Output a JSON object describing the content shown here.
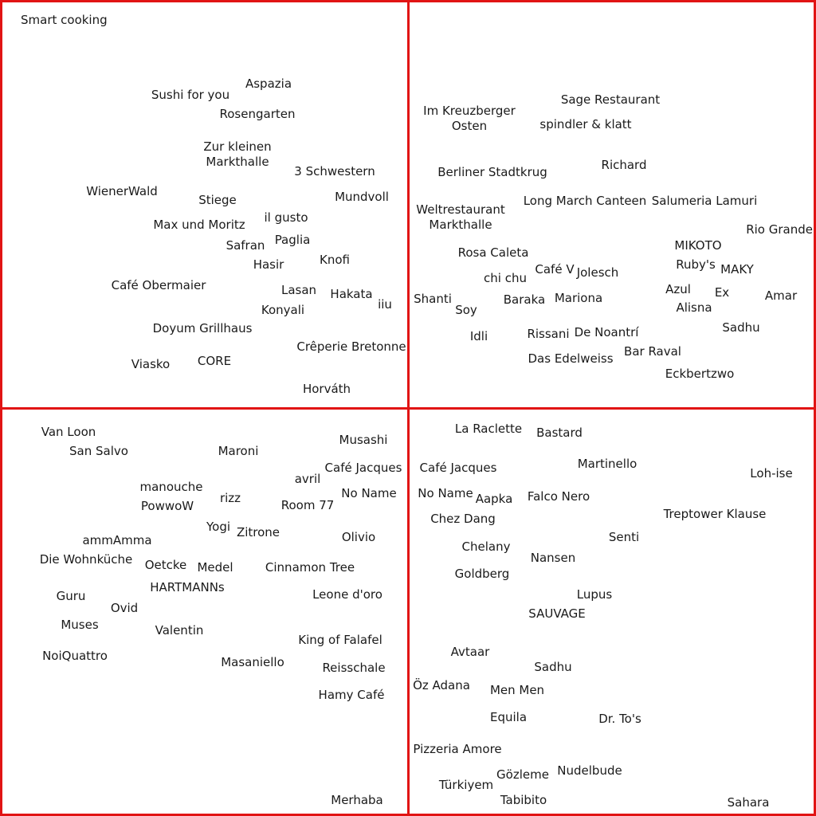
{
  "title": "Smart cooking",
  "quadrants": [
    {
      "name": "top-left",
      "labels": [
        "Aspazia",
        "Sushi for you",
        "Rosengarten",
        "Zur kleinen\nMarkthalle",
        "3 Schwestern",
        "WienerWald",
        "Stiege",
        "Mundvoll",
        "il gusto",
        "Max und Moritz",
        "Paglia",
        "Safran",
        "Knofi",
        "Hasir",
        "Café Obermaier",
        "Lasan",
        "Hakata",
        "iiu",
        "Konyali",
        "Doyum Grillhaus",
        "Crêperie Bretonne",
        "Viasko",
        "CORE",
        "Horváth"
      ]
    },
    {
      "name": "top-right",
      "labels": [
        "Sage Restaurant",
        "Im Kreuzberger\nOsten",
        "spindler & klatt",
        "Richard",
        "Berliner Stadtkrug",
        "Weltrestaurant\nMarkthalle",
        "Long March Canteen",
        "Salumeria Lamuri",
        "Rio Grande",
        "MIKOTO",
        "Rosa Caleta",
        "Ruby's",
        "MAKY",
        "Café V",
        "Jolesch",
        "chi chu",
        "Azul",
        "Ex",
        "Amar",
        "Shanti",
        "Baraka",
        "Mariona",
        "Alisna",
        "Soy",
        "Sadhu",
        "Idli",
        "Rissani",
        "De Noantrí",
        "Bar Raval",
        "Das Edelweiss",
        "Eckbertzwo"
      ]
    },
    {
      "name": "bottom-left",
      "labels": [
        "Van Loon",
        "San Salvo",
        "Maroni",
        "Musashi",
        "Café Jacques",
        "avril",
        "manouche",
        "No Name",
        "rizz",
        "PowwoW",
        "Room 77",
        "Yogi",
        "Zitrone",
        "ammAmma",
        "Olivio",
        "Die Wohnküche",
        "Oetcke",
        "Medel",
        "Cinnamon Tree",
        "HARTMANNs",
        "Guru",
        "Leone d'oro",
        "Ovid",
        "Muses",
        "Valentin",
        "King of Falafel",
        "NoiQuattro",
        "Masaniello",
        "Reisschale",
        "Hamy Café",
        "Merhaba"
      ]
    },
    {
      "name": "bottom-right",
      "labels": [
        "La Raclette",
        "Bastard",
        "Café Jacques",
        "Martinello",
        "Loh-ise",
        "No Name",
        "Aapka",
        "Falco Nero",
        "Treptower Klause",
        "Chez Dang",
        "Senti",
        "Chelany",
        "Nansen",
        "Goldberg",
        "Lupus",
        "SAUVAGE",
        "Avtaar",
        "Sadhu",
        "Öz Adana",
        "Men Men",
        "Equila",
        "Dr. To's",
        "Pizzeria Amore",
        "Nudelbude",
        "Gözleme",
        "Türkiyem",
        "Tabibito",
        "Sahara"
      ]
    }
  ]
}
